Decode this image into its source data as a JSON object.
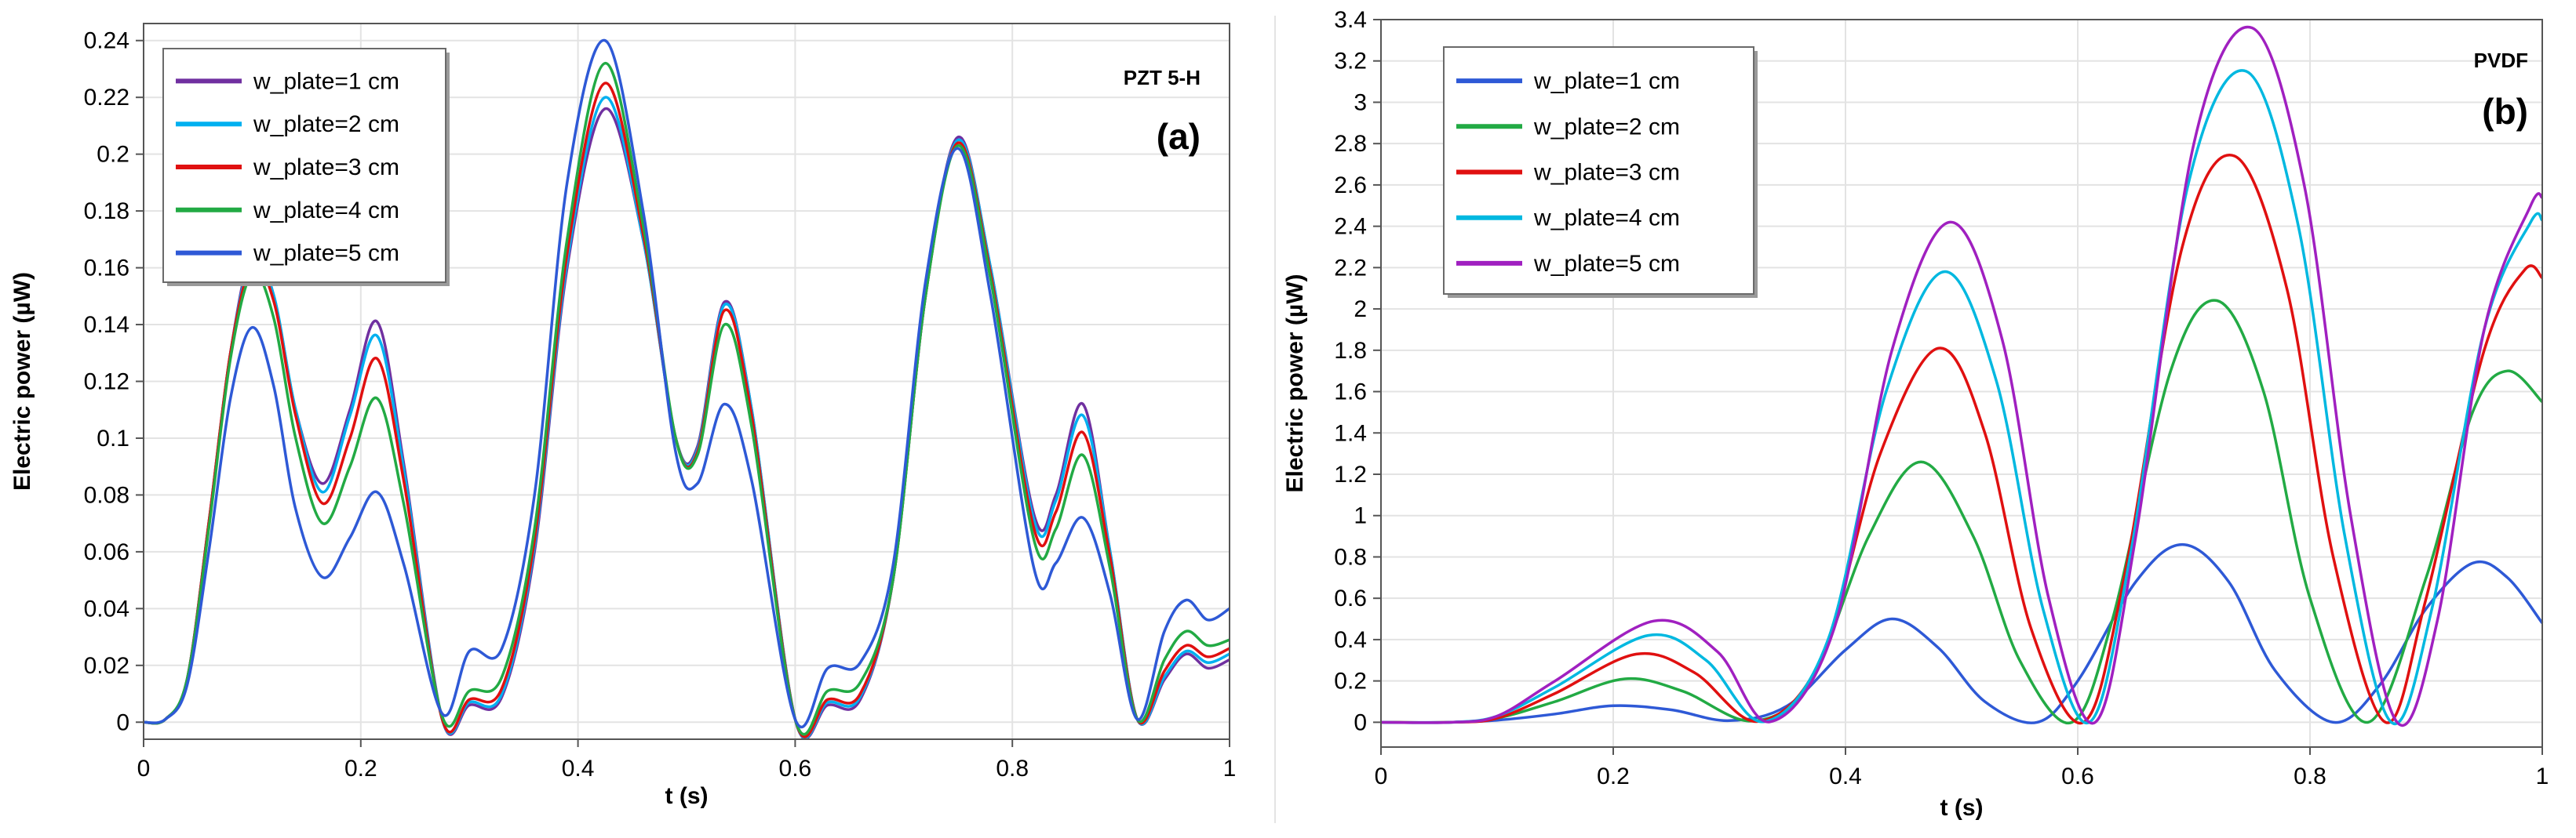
{
  "chart_data": [
    {
      "type": "line",
      "material": "PZT 5-H",
      "panel": "(a)",
      "xlabel": "t (s)",
      "ylabel": "Electric power (µW)",
      "xlim": [
        0,
        1
      ],
      "ylim": [
        -0.006,
        0.246
      ],
      "xticks": [
        0,
        0.2,
        0.4,
        0.6,
        0.8,
        1
      ],
      "xtick_labels": [
        "0",
        "0.2",
        "0.4",
        "0.6",
        "0.8",
        "1"
      ],
      "yticks": [
        0,
        0.02,
        0.04,
        0.06,
        0.08,
        0.1,
        0.12,
        0.14,
        0.16,
        0.18,
        0.2,
        0.22,
        0.24
      ],
      "ytick_labels": [
        "0",
        "0.02",
        "0.04",
        "0.06",
        "0.08",
        "0.1",
        "0.12",
        "0.14",
        "0.16",
        "0.18",
        "0.2",
        "0.22",
        "0.24"
      ],
      "grid": true,
      "legend_position": "top-left",
      "series": [
        {
          "name": "w_plate=1 cm",
          "color": "#7030a0",
          "x": [
            0,
            0.02,
            0.04,
            0.06,
            0.08,
            0.1,
            0.12,
            0.14,
            0.165,
            0.19,
            0.215,
            0.24,
            0.275,
            0.3,
            0.33,
            0.36,
            0.39,
            0.425,
            0.46,
            0.49,
            0.51,
            0.535,
            0.56,
            0.6,
            0.63,
            0.66,
            0.69,
            0.72,
            0.75,
            0.78,
            0.82,
            0.84,
            0.865,
            0.89,
            0.915,
            0.94,
            0.96,
            0.98,
            1.0
          ],
          "y": [
            0,
            0.001,
            0.015,
            0.07,
            0.13,
            0.165,
            0.15,
            0.11,
            0.084,
            0.11,
            0.141,
            0.09,
            0.001,
            0.006,
            0.009,
            0.06,
            0.16,
            0.216,
            0.17,
            0.1,
            0.097,
            0.148,
            0.11,
            0.001,
            0.006,
            0.008,
            0.05,
            0.15,
            0.206,
            0.16,
            0.073,
            0.08,
            0.112,
            0.06,
            0.001,
            0.015,
            0.024,
            0.019,
            0.022
          ]
        },
        {
          "name": "w_plate=2 cm",
          "color": "#00b0f0",
          "x": [
            0,
            0.02,
            0.04,
            0.06,
            0.08,
            0.1,
            0.12,
            0.14,
            0.165,
            0.19,
            0.215,
            0.24,
            0.275,
            0.3,
            0.33,
            0.36,
            0.39,
            0.425,
            0.46,
            0.49,
            0.51,
            0.535,
            0.56,
            0.6,
            0.63,
            0.66,
            0.69,
            0.72,
            0.75,
            0.78,
            0.82,
            0.84,
            0.865,
            0.89,
            0.915,
            0.94,
            0.96,
            0.98,
            1.0
          ],
          "y": [
            0,
            0.001,
            0.015,
            0.07,
            0.13,
            0.163,
            0.15,
            0.11,
            0.081,
            0.108,
            0.136,
            0.088,
            0.001,
            0.007,
            0.01,
            0.062,
            0.162,
            0.22,
            0.17,
            0.1,
            0.096,
            0.147,
            0.11,
            0.001,
            0.007,
            0.009,
            0.05,
            0.15,
            0.205,
            0.16,
            0.071,
            0.078,
            0.108,
            0.06,
            0.001,
            0.016,
            0.025,
            0.021,
            0.024
          ]
        },
        {
          "name": "w_plate=3 cm",
          "color": "#e01010",
          "x": [
            0,
            0.02,
            0.04,
            0.06,
            0.08,
            0.1,
            0.12,
            0.14,
            0.165,
            0.19,
            0.215,
            0.24,
            0.275,
            0.3,
            0.33,
            0.36,
            0.39,
            0.425,
            0.46,
            0.49,
            0.51,
            0.535,
            0.56,
            0.6,
            0.63,
            0.66,
            0.69,
            0.72,
            0.75,
            0.78,
            0.82,
            0.84,
            0.865,
            0.89,
            0.915,
            0.94,
            0.96,
            0.98,
            1.0
          ],
          "y": [
            0,
            0.001,
            0.015,
            0.07,
            0.13,
            0.161,
            0.148,
            0.108,
            0.077,
            0.1,
            0.128,
            0.084,
            0.001,
            0.008,
            0.012,
            0.064,
            0.165,
            0.225,
            0.172,
            0.1,
            0.095,
            0.145,
            0.108,
            0.001,
            0.008,
            0.01,
            0.05,
            0.15,
            0.204,
            0.158,
            0.068,
            0.074,
            0.102,
            0.058,
            0.001,
            0.018,
            0.027,
            0.023,
            0.026
          ]
        },
        {
          "name": "w_plate=4 cm",
          "color": "#22aa44",
          "x": [
            0,
            0.02,
            0.04,
            0.06,
            0.08,
            0.1,
            0.12,
            0.14,
            0.165,
            0.19,
            0.215,
            0.24,
            0.275,
            0.3,
            0.33,
            0.36,
            0.39,
            0.425,
            0.46,
            0.49,
            0.51,
            0.535,
            0.56,
            0.6,
            0.63,
            0.66,
            0.69,
            0.72,
            0.75,
            0.78,
            0.82,
            0.84,
            0.865,
            0.89,
            0.915,
            0.94,
            0.96,
            0.98,
            1.0
          ],
          "y": [
            0,
            0.001,
            0.015,
            0.068,
            0.128,
            0.158,
            0.142,
            0.1,
            0.07,
            0.09,
            0.114,
            0.076,
            0.002,
            0.011,
            0.016,
            0.068,
            0.17,
            0.232,
            0.175,
            0.1,
            0.094,
            0.14,
            0.104,
            0.001,
            0.011,
            0.014,
            0.05,
            0.15,
            0.203,
            0.156,
            0.064,
            0.068,
            0.094,
            0.054,
            0.001,
            0.022,
            0.032,
            0.027,
            0.029
          ]
        },
        {
          "name": "w_plate=5 cm",
          "color": "#2e59d6",
          "x": [
            0,
            0.02,
            0.04,
            0.06,
            0.08,
            0.1,
            0.12,
            0.14,
            0.165,
            0.19,
            0.215,
            0.24,
            0.275,
            0.3,
            0.33,
            0.36,
            0.39,
            0.425,
            0.46,
            0.49,
            0.51,
            0.535,
            0.56,
            0.6,
            0.63,
            0.66,
            0.69,
            0.72,
            0.75,
            0.78,
            0.82,
            0.84,
            0.865,
            0.89,
            0.915,
            0.94,
            0.96,
            0.98,
            1.0
          ],
          "y": [
            0,
            0.001,
            0.013,
            0.06,
            0.114,
            0.139,
            0.118,
            0.075,
            0.051,
            0.065,
            0.081,
            0.055,
            0.003,
            0.025,
            0.026,
            0.08,
            0.19,
            0.24,
            0.18,
            0.095,
            0.084,
            0.112,
            0.085,
            0.001,
            0.019,
            0.021,
            0.055,
            0.155,
            0.202,
            0.15,
            0.054,
            0.056,
            0.072,
            0.045,
            0.001,
            0.032,
            0.043,
            0.036,
            0.04
          ]
        }
      ]
    },
    {
      "type": "line",
      "material": "PVDF",
      "panel": "(b)",
      "xlabel": "t (s)",
      "ylabel": "Electric power (µW)",
      "xlim": [
        0,
        1
      ],
      "ylim": [
        -0.12,
        3.4
      ],
      "xticks": [
        0,
        0.2,
        0.4,
        0.6,
        0.8,
        1
      ],
      "xtick_labels": [
        "0",
        "0.2",
        "0.4",
        "0.6",
        "0.8",
        "1"
      ],
      "yticks": [
        0,
        0.2,
        0.4,
        0.6,
        0.8,
        1,
        1.2,
        1.4,
        1.6,
        1.8,
        2,
        2.2,
        2.4,
        2.6,
        2.8,
        3,
        3.2,
        3.4
      ],
      "ytick_labels": [
        "0",
        "0.2",
        "0.4",
        "0.6",
        "0.8",
        "1",
        "1.2",
        "1.4",
        "1.6",
        "1.8",
        "2",
        "2.2",
        "2.4",
        "2.6",
        "2.8",
        "3",
        "3.2",
        "3.4"
      ],
      "grid": true,
      "legend_position": "top-left",
      "series": [
        {
          "name": "w_plate=1 cm",
          "color": "#2e59d6",
          "x": [
            0,
            0.06,
            0.1,
            0.15,
            0.2,
            0.25,
            0.3,
            0.35,
            0.4,
            0.44,
            0.48,
            0.52,
            0.565,
            0.6,
            0.65,
            0.69,
            0.73,
            0.77,
            0.82,
            0.86,
            0.9,
            0.94,
            0.97,
            1.0
          ],
          "y": [
            0,
            0.0,
            0.01,
            0.04,
            0.08,
            0.06,
            0.008,
            0.08,
            0.35,
            0.5,
            0.36,
            0.1,
            0.0,
            0.2,
            0.68,
            0.86,
            0.68,
            0.25,
            0.0,
            0.18,
            0.55,
            0.77,
            0.7,
            0.48
          ]
        },
        {
          "name": "w_plate=2 cm",
          "color": "#22aa44",
          "x": [
            0,
            0.06,
            0.1,
            0.15,
            0.21,
            0.26,
            0.32,
            0.37,
            0.42,
            0.465,
            0.51,
            0.55,
            0.595,
            0.63,
            0.68,
            0.72,
            0.76,
            0.8,
            0.85,
            0.9,
            0.94,
            0.97,
            1.0
          ],
          "y": [
            0,
            0.0,
            0.02,
            0.1,
            0.21,
            0.15,
            0.006,
            0.2,
            0.9,
            1.26,
            0.9,
            0.3,
            0.0,
            0.5,
            1.7,
            2.04,
            1.6,
            0.6,
            0.0,
            0.7,
            1.5,
            1.7,
            1.55
          ]
        },
        {
          "name": "w_plate=3 cm",
          "color": "#e01010",
          "x": [
            0,
            0.06,
            0.1,
            0.15,
            0.22,
            0.27,
            0.325,
            0.38,
            0.43,
            0.48,
            0.52,
            0.56,
            0.605,
            0.64,
            0.69,
            0.735,
            0.78,
            0.82,
            0.865,
            0.9,
            0.95,
            0.985,
            1.0
          ],
          "y": [
            0,
            0.0,
            0.02,
            0.14,
            0.33,
            0.24,
            0.004,
            0.32,
            1.3,
            1.81,
            1.4,
            0.45,
            0.0,
            0.7,
            2.3,
            2.74,
            2.1,
            0.8,
            0.0,
            0.6,
            1.8,
            2.19,
            2.15
          ]
        },
        {
          "name": "w_plate=4 cm",
          "color": "#00b8e0",
          "x": [
            0,
            0.06,
            0.1,
            0.15,
            0.23,
            0.28,
            0.33,
            0.385,
            0.435,
            0.485,
            0.53,
            0.57,
            0.61,
            0.645,
            0.695,
            0.745,
            0.79,
            0.83,
            0.87,
            0.905,
            0.95,
            0.99,
            1.0
          ],
          "y": [
            0,
            0.0,
            0.03,
            0.17,
            0.42,
            0.3,
            0.003,
            0.4,
            1.6,
            2.18,
            1.65,
            0.55,
            0.0,
            0.8,
            2.6,
            3.15,
            2.4,
            0.9,
            0.0,
            0.55,
            1.9,
            2.42,
            2.43
          ]
        },
        {
          "name": "w_plate=5 cm",
          "color": "#a020c0",
          "x": [
            0,
            0.06,
            0.1,
            0.15,
            0.235,
            0.29,
            0.335,
            0.39,
            0.44,
            0.49,
            0.535,
            0.575,
            0.615,
            0.65,
            0.7,
            0.75,
            0.795,
            0.835,
            0.875,
            0.91,
            0.95,
            0.99,
            1.0
          ],
          "y": [
            0,
            0.0,
            0.03,
            0.2,
            0.49,
            0.34,
            0.002,
            0.45,
            1.8,
            2.42,
            1.85,
            0.6,
            0.0,
            0.9,
            2.8,
            3.36,
            2.6,
            1.0,
            0.0,
            0.5,
            1.9,
            2.5,
            2.54
          ]
        }
      ]
    }
  ]
}
